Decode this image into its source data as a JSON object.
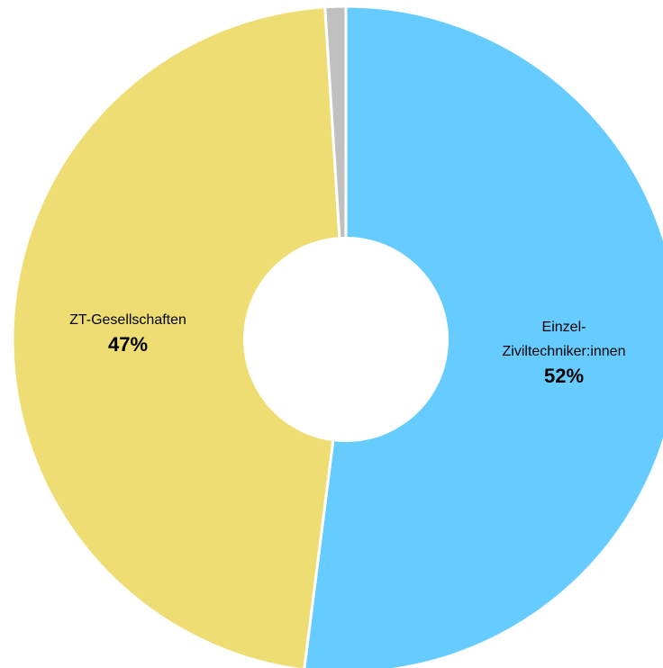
{
  "chart_data": {
    "type": "pie",
    "variant": "donut",
    "slices": [
      {
        "label_lines": [
          "Einzel-",
          "Ziviltechniker:innen"
        ],
        "value": 52,
        "value_label": "52%",
        "color": "#66CCFF"
      },
      {
        "label_lines": [
          "ZT-Gesellschaften"
        ],
        "value": 47,
        "value_label": "47%",
        "color": "#EEDD73"
      },
      {
        "label_lines": [],
        "value": 1,
        "value_label": "",
        "color": "#C0C0C0"
      }
    ],
    "start_angle_deg": 0,
    "direction": "clockwise"
  }
}
